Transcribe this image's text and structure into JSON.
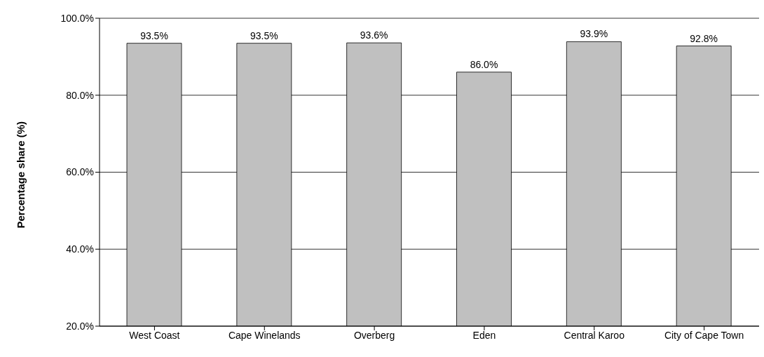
{
  "chart_data": {
    "type": "bar",
    "ylabel": "Percentage share (%)",
    "categories": [
      "West Coast",
      "Cape Winelands",
      "Overberg",
      "Eden",
      "Central Karoo",
      "City of Cape Town"
    ],
    "values": [
      93.5,
      93.5,
      93.6,
      86.0,
      93.9,
      92.8
    ],
    "value_labels": [
      "93.5%",
      "93.5%",
      "93.6%",
      "86.0%",
      "93.9%",
      "92.8%"
    ],
    "color": "#c0c0c0",
    "ylim": [
      20,
      100
    ],
    "yticks": [
      {
        "value": 20,
        "label": "20.0%"
      },
      {
        "value": 40,
        "label": "40.0%"
      },
      {
        "value": 60,
        "label": "60.0%"
      },
      {
        "value": 80,
        "label": "80.0%"
      },
      {
        "value": 100,
        "label": "100.0%"
      }
    ],
    "grid": "y"
  }
}
